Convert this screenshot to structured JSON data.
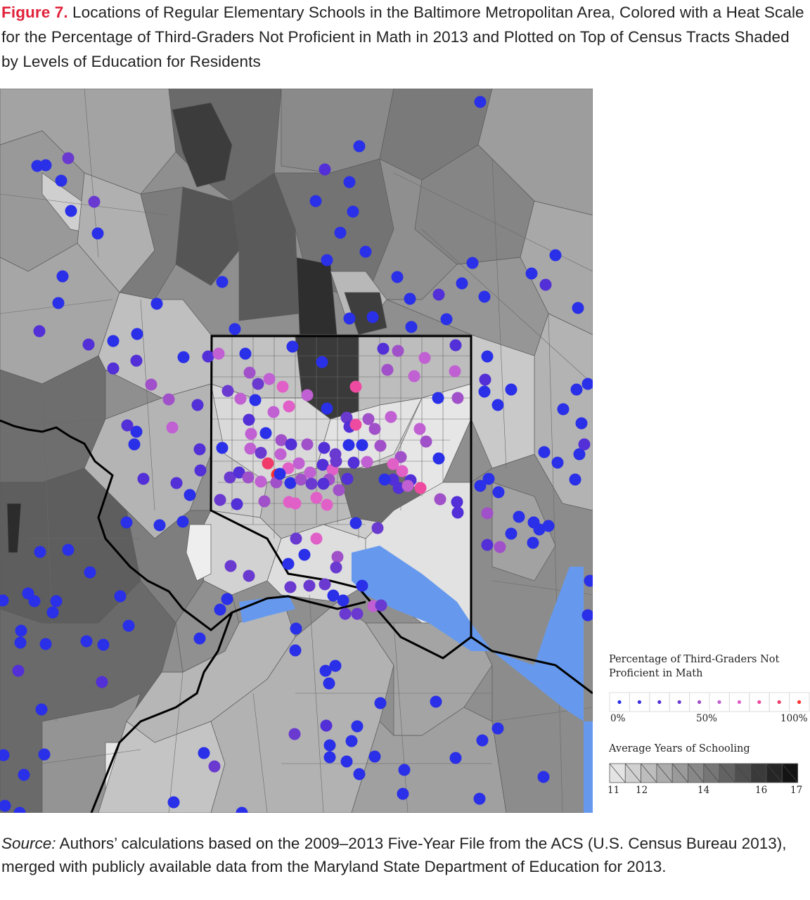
{
  "caption": {
    "label": "Figure 7.",
    "text": " Locations of Regular Elementary Schools in the Baltimore Metropolitan Area, Colored with a Heat Scale for the Percentage of Third-Graders Not Proficient in Math in 2013 and Plotted on Top of Census Tracts Shaded by Levels of Education for Residents"
  },
  "legend": {
    "heat_title": "Percentage of Third-Graders Not Proficient in Math",
    "heat_ticks": [
      "0%",
      "50%",
      "100%"
    ],
    "heat_colors": [
      "#2a2fe8",
      "#3c2ee0",
      "#522fd6",
      "#6a3ad0",
      "#a050c8",
      "#c060d2",
      "#e060c8",
      "#ee4aa0",
      "#f03a6a",
      "#ff3030"
    ],
    "schooling_title": "Average Years of Schooling",
    "schooling_ticks": [
      "11",
      "12",
      "14",
      "16",
      "17"
    ],
    "schooling_colors": [
      "#e4e4e4",
      "#d0d0d0",
      "#bdbdbd",
      "#ababab",
      "#9a9a9a",
      "#888888",
      "#767676",
      "#636363",
      "#4f4f4f",
      "#3a3a3a",
      "#262626",
      "#141414"
    ]
  },
  "map": {
    "water_color": "#6699ee",
    "boundary_color": "#000000"
  },
  "source": {
    "label": "Source:",
    "text": " Authors’ calculations based on the 2009–2013 Five-Year File from the ACS (U.S. Census Bureau 2013), merged with publicly available data from the Maryland State Department of Education for 2013."
  }
}
